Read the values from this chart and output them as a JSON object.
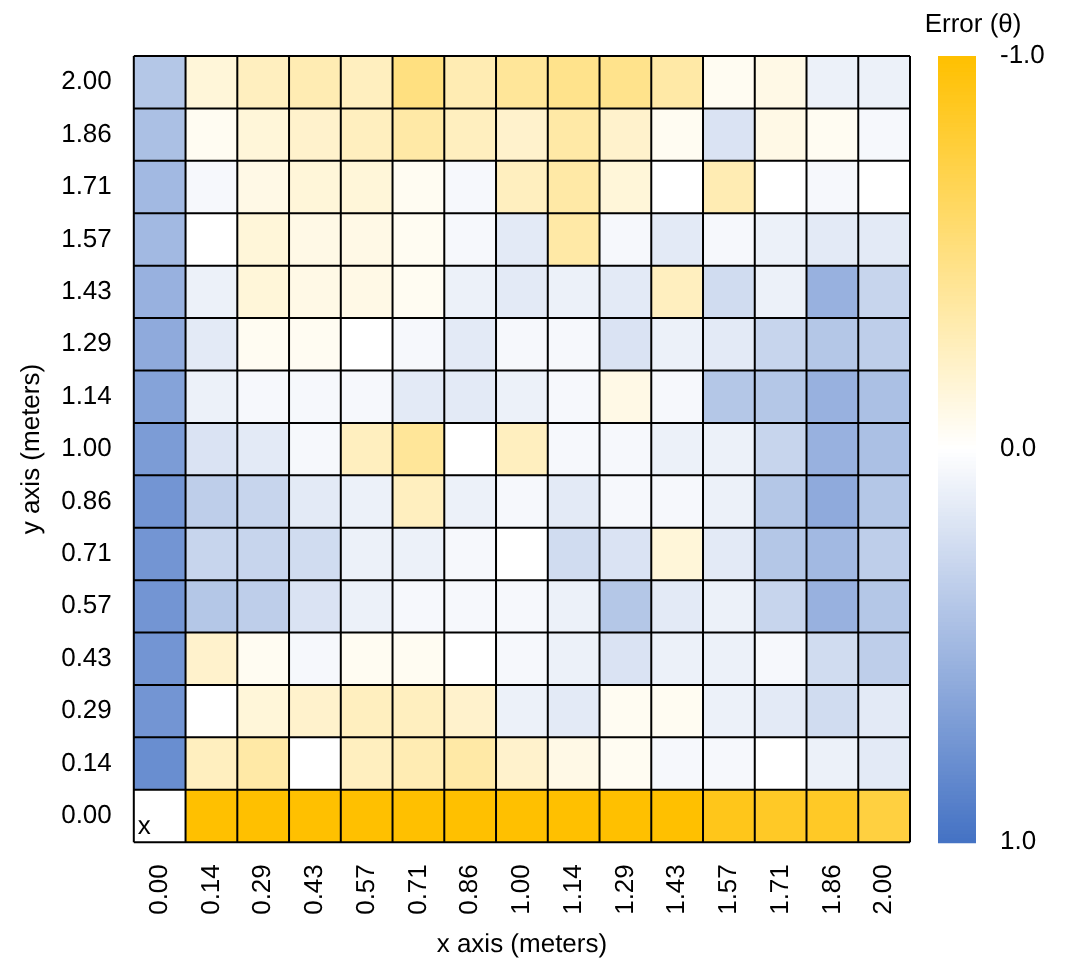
{
  "chart_data": {
    "type": "heatmap",
    "xlabel": "x axis (meters)",
    "ylabel": "y axis (meters)",
    "clabel": "Error (θ)",
    "categories": [
      "0.00",
      "0.14",
      "0.29",
      "0.43",
      "0.57",
      "0.71",
      "0.86",
      "1.00",
      "1.14",
      "1.29",
      "1.43",
      "1.57",
      "1.71",
      "1.86",
      "2.00"
    ],
    "y_categories": [
      "2.00",
      "1.86",
      "1.71",
      "1.57",
      "1.43",
      "1.29",
      "1.14",
      "1.00",
      "0.86",
      "0.71",
      "0.57",
      "0.43",
      "0.29",
      "0.14",
      "0.00"
    ],
    "cells": [
      [
        0.4,
        -0.15,
        -0.25,
        -0.3,
        -0.25,
        -0.5,
        -0.3,
        -0.4,
        -0.45,
        -0.45,
        -0.35,
        -0.05,
        -0.1,
        0.1,
        0.1
      ],
      [
        0.45,
        -0.05,
        -0.15,
        -0.2,
        -0.25,
        -0.35,
        -0.25,
        -0.2,
        -0.35,
        -0.2,
        -0.05,
        0.2,
        -0.1,
        -0.05,
        0.05
      ],
      [
        0.5,
        0.05,
        -0.1,
        -0.15,
        -0.15,
        -0.05,
        0.05,
        -0.25,
        -0.35,
        -0.15,
        0.0,
        -0.3,
        0.0,
        0.05,
        0.0
      ],
      [
        0.5,
        0.0,
        -0.15,
        -0.1,
        -0.1,
        -0.05,
        0.05,
        0.15,
        -0.35,
        0.05,
        0.15,
        0.05,
        0.1,
        0.15,
        0.15
      ],
      [
        0.55,
        0.1,
        -0.15,
        -0.1,
        -0.1,
        -0.05,
        0.1,
        0.15,
        0.1,
        0.15,
        -0.25,
        0.25,
        0.1,
        0.55,
        0.3
      ],
      [
        0.6,
        0.15,
        -0.05,
        -0.05,
        0.0,
        0.05,
        0.15,
        0.05,
        0.05,
        0.2,
        0.1,
        0.15,
        0.3,
        0.4,
        0.35
      ],
      [
        0.65,
        0.1,
        0.05,
        0.05,
        0.05,
        0.15,
        0.15,
        0.1,
        0.05,
        -0.1,
        0.05,
        0.4,
        0.4,
        0.55,
        0.45
      ],
      [
        0.7,
        0.2,
        0.15,
        0.05,
        -0.25,
        -0.4,
        0.0,
        -0.25,
        0.05,
        0.05,
        0.1,
        0.1,
        0.3,
        0.55,
        0.45
      ],
      [
        0.75,
        0.35,
        0.3,
        0.15,
        0.1,
        -0.25,
        0.1,
        0.05,
        0.15,
        0.05,
        0.05,
        0.1,
        0.4,
        0.6,
        0.4
      ],
      [
        0.75,
        0.3,
        0.3,
        0.25,
        0.1,
        0.1,
        0.05,
        0.0,
        0.25,
        0.2,
        -0.15,
        0.15,
        0.4,
        0.5,
        0.35
      ],
      [
        0.75,
        0.4,
        0.35,
        0.2,
        0.1,
        0.05,
        0.05,
        0.05,
        0.1,
        0.4,
        0.15,
        0.1,
        0.3,
        0.55,
        0.4
      ],
      [
        0.75,
        -0.2,
        -0.05,
        0.05,
        -0.05,
        -0.05,
        0.0,
        0.05,
        0.1,
        0.2,
        0.1,
        0.1,
        0.05,
        0.25,
        0.35
      ],
      [
        0.75,
        0.0,
        -0.15,
        -0.2,
        -0.25,
        -0.25,
        -0.2,
        0.1,
        0.15,
        -0.05,
        -0.05,
        0.1,
        0.15,
        0.25,
        0.15
      ],
      [
        0.8,
        -0.25,
        -0.35,
        0.0,
        -0.25,
        -0.3,
        -0.35,
        -0.2,
        -0.1,
        -0.05,
        0.05,
        0.05,
        0.0,
        0.1,
        0.15
      ],
      [
        null,
        -1.0,
        -1.0,
        -1.0,
        -1.0,
        -1.0,
        -1.0,
        -1.0,
        -1.0,
        -1.0,
        -1.0,
        -0.9,
        -0.85,
        -0.85,
        -0.75
      ]
    ],
    "cell_labels": [
      [
        null,
        null,
        null,
        null,
        null,
        null,
        null,
        null,
        null,
        null,
        null,
        null,
        null,
        null,
        null
      ],
      [
        null,
        null,
        null,
        null,
        null,
        null,
        null,
        null,
        null,
        null,
        null,
        null,
        null,
        null,
        null
      ],
      [
        null,
        null,
        null,
        null,
        null,
        null,
        null,
        null,
        null,
        null,
        null,
        null,
        null,
        null,
        null
      ],
      [
        null,
        null,
        null,
        null,
        null,
        null,
        null,
        null,
        null,
        null,
        null,
        null,
        null,
        null,
        null
      ],
      [
        null,
        null,
        null,
        null,
        null,
        null,
        null,
        null,
        null,
        null,
        null,
        null,
        null,
        null,
        null
      ],
      [
        null,
        null,
        null,
        null,
        null,
        null,
        null,
        null,
        null,
        null,
        null,
        null,
        null,
        null,
        null
      ],
      [
        null,
        null,
        null,
        null,
        null,
        null,
        null,
        null,
        null,
        null,
        null,
        null,
        null,
        null,
        null
      ],
      [
        null,
        null,
        null,
        null,
        null,
        null,
        null,
        null,
        null,
        null,
        null,
        null,
        null,
        null,
        null
      ],
      [
        null,
        null,
        null,
        null,
        null,
        null,
        null,
        null,
        null,
        null,
        null,
        null,
        null,
        null,
        null
      ],
      [
        null,
        null,
        null,
        null,
        null,
        null,
        null,
        null,
        null,
        null,
        null,
        null,
        null,
        null,
        null
      ],
      [
        null,
        null,
        null,
        null,
        null,
        null,
        null,
        null,
        null,
        null,
        null,
        null,
        null,
        null,
        null
      ],
      [
        null,
        null,
        null,
        null,
        null,
        null,
        null,
        null,
        null,
        null,
        null,
        null,
        null,
        null,
        null
      ],
      [
        null,
        null,
        null,
        null,
        null,
        null,
        null,
        null,
        null,
        null,
        null,
        null,
        null,
        null,
        null
      ],
      [
        null,
        null,
        null,
        null,
        null,
        null,
        null,
        null,
        null,
        null,
        null,
        null,
        null,
        null,
        null
      ],
      [
        "x",
        null,
        null,
        null,
        null,
        null,
        null,
        null,
        null,
        null,
        null,
        null,
        null,
        null,
        null
      ]
    ],
    "clim": [
      1.0,
      -1.0
    ],
    "cticks": [
      {
        "value": -1.0,
        "label": "-1.0"
      },
      {
        "value": 0,
        "label": "0.0"
      },
      {
        "value": 1.0,
        "label": "1.0"
      }
    ]
  }
}
